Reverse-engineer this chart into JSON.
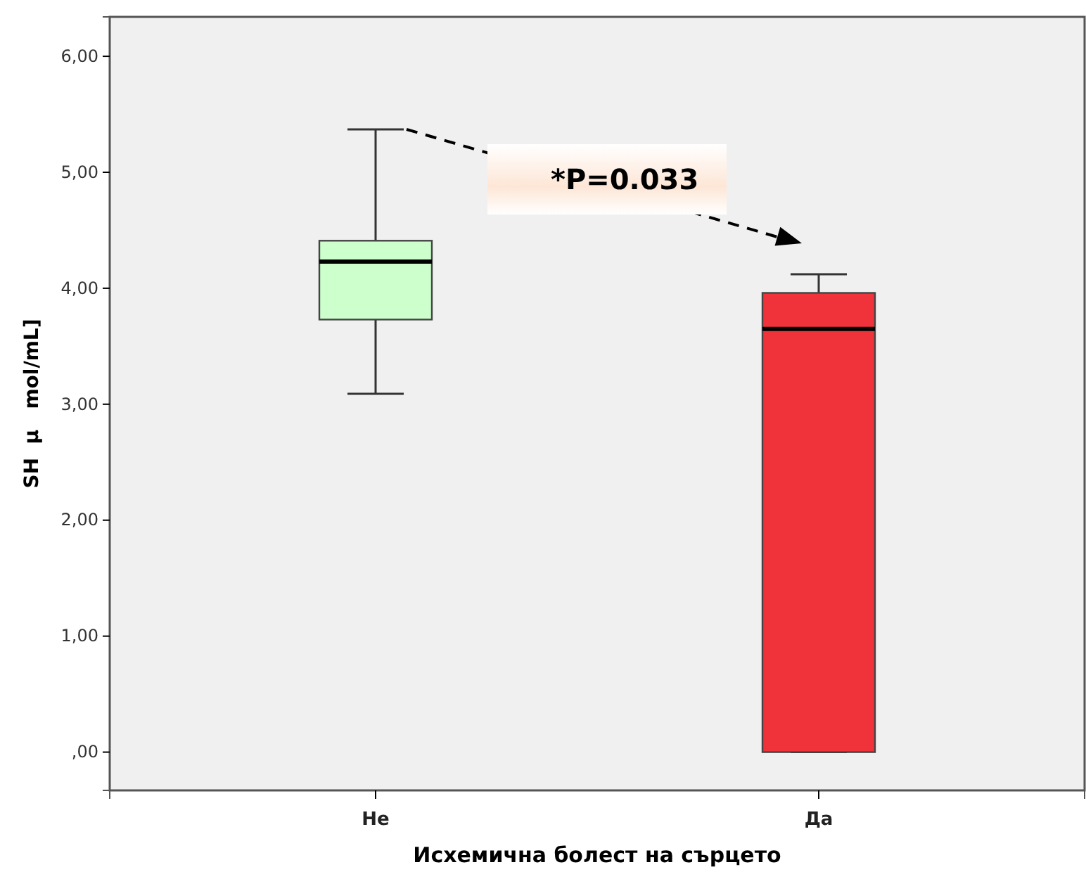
{
  "chart_data": {
    "type": "box",
    "categories": [
      "Не",
      "Да"
    ],
    "xlabel": "Исхемична болест на сърцето",
    "ylabel": "SH  μ   mol/mL]",
    "colors": [
      "#ccffcc",
      "#f0323a"
    ],
    "boxes": [
      {
        "low": 3.09,
        "q1": 3.73,
        "median": 4.23,
        "q3": 4.41,
        "high": 5.37
      },
      {
        "low": 0,
        "q1": 0,
        "median": 3.65,
        "q3": 3.96,
        "high": 4.12
      }
    ],
    "ylim": [
      -0.33,
      6.34
    ],
    "yticks": [
      {
        "value": 0,
        "label": ",00"
      },
      {
        "value": 1,
        "label": "1,00"
      },
      {
        "value": 2,
        "label": "2,00"
      },
      {
        "value": 3,
        "label": "3,00"
      },
      {
        "value": 4,
        "label": "4,00"
      },
      {
        "value": 5,
        "label": "5,00"
      },
      {
        "value": 6,
        "label": "6,00"
      }
    ],
    "annotations": [
      "*P=0.033"
    ]
  }
}
